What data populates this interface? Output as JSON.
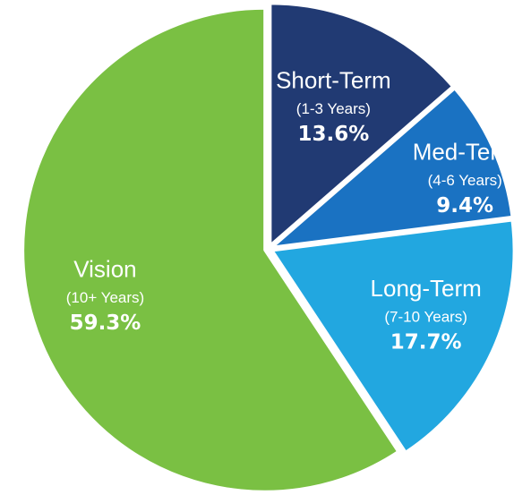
{
  "chart_data": {
    "type": "pie",
    "title": "",
    "slices": [
      {
        "name": "Short-Term",
        "subtitle": "(1-3 Years)",
        "value": 13.6,
        "value_label": "13.6%",
        "color": "#213a73",
        "text_color": "#ffffff"
      },
      {
        "name": "Med-Term",
        "subtitle": "(4-6 Years)",
        "value": 9.4,
        "value_label": "9.4%",
        "color": "#1a72c2",
        "text_color": "#ffffff"
      },
      {
        "name": "Long-Term",
        "subtitle": "(7-10 Years)",
        "value": 17.7,
        "value_label": "17.7%",
        "color": "#22a7e0",
        "text_color": "#ffffff"
      },
      {
        "name": "Vision",
        "subtitle": "(10+ Years)",
        "value": 59.3,
        "value_label": "59.3%",
        "color": "#7ac043",
        "text_color": "#ffffff"
      }
    ],
    "start_angle": "12 o'clock",
    "direction": "clockwise",
    "separator_color": "#ffffff"
  }
}
